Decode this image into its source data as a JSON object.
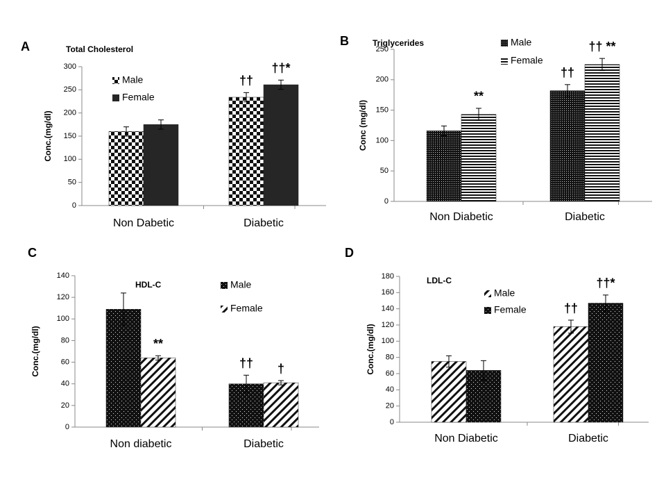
{
  "chart_data": [
    {
      "type": "bar",
      "panel": "A",
      "title": "Total Cholesterol",
      "ylabel": "Conc.(mg/dl)",
      "categories": [
        "Non Dabetic",
        "Diabetic"
      ],
      "ylim": [
        0,
        300
      ],
      "yticks": [
        0,
        50,
        100,
        150,
        200,
        250,
        300
      ],
      "series": [
        {
          "name": "Male",
          "pattern": "checker",
          "values": [
            160,
            234
          ],
          "errors": [
            10,
            10
          ],
          "annotations": [
            null,
            "††"
          ]
        },
        {
          "name": "Female",
          "pattern": "solid",
          "values": [
            175,
            261
          ],
          "errors": [
            10,
            10
          ],
          "annotations": [
            null,
            "††*"
          ]
        }
      ]
    },
    {
      "type": "bar",
      "panel": "B",
      "title": "Triglycerides",
      "ylabel": "Conc (mg/dl)",
      "categories": [
        "Non Diabetic",
        "Diabetic"
      ],
      "ylim": [
        0,
        250
      ],
      "yticks": [
        0,
        50,
        100,
        150,
        200,
        250
      ],
      "series": [
        {
          "name": "Male",
          "pattern": "dense",
          "values": [
            116,
            182
          ],
          "errors": [
            8,
            10
          ],
          "annotations": [
            null,
            "††"
          ]
        },
        {
          "name": "Female",
          "pattern": "hlines",
          "values": [
            143,
            225
          ],
          "errors": [
            10,
            10
          ],
          "annotations": [
            "**",
            "†† **"
          ]
        }
      ]
    },
    {
      "type": "bar",
      "panel": "C",
      "title": "HDL-C",
      "ylabel": "Conc.(mg/dl)",
      "categories": [
        "Non diabetic",
        "Diabetic"
      ],
      "ylim": [
        0,
        140
      ],
      "yticks": [
        0,
        20,
        40,
        60,
        80,
        100,
        120,
        140
      ],
      "series": [
        {
          "name": "Male",
          "pattern": "dots",
          "values": [
            109,
            40
          ],
          "errors": [
            15,
            8
          ],
          "annotations": [
            null,
            "††"
          ]
        },
        {
          "name": "Female",
          "pattern": "diag",
          "values": [
            64,
            41
          ],
          "errors": [
            2,
            2
          ],
          "annotations": [
            "**",
            "†"
          ]
        }
      ]
    },
    {
      "type": "bar",
      "panel": "D",
      "title": "LDL-C",
      "ylabel": "Conc.(mg/dl)",
      "categories": [
        "Non Diabetic",
        "Diabetic"
      ],
      "ylim": [
        0,
        180
      ],
      "yticks": [
        0,
        20,
        40,
        60,
        80,
        100,
        120,
        140,
        160,
        180
      ],
      "series": [
        {
          "name": "Male",
          "pattern": "diag",
          "values": [
            75,
            118
          ],
          "errors": [
            7,
            8
          ],
          "annotations": [
            null,
            "††"
          ]
        },
        {
          "name": "Female",
          "pattern": "dots",
          "values": [
            64,
            147
          ],
          "errors": [
            12,
            10
          ],
          "annotations": [
            null,
            "††*"
          ]
        }
      ]
    }
  ]
}
